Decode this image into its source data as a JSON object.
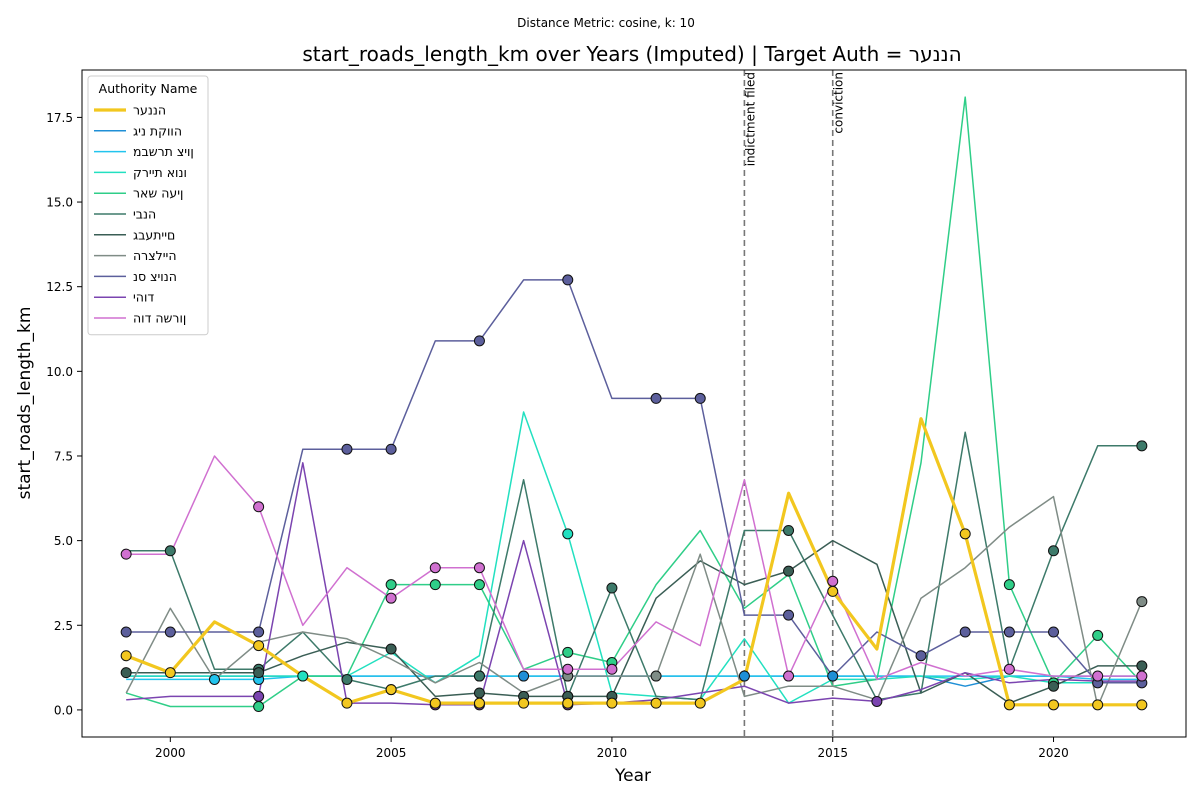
{
  "chart_data": {
    "type": "line",
    "suptitle": "Distance Metric: cosine, k: 10",
    "title": "start_roads_length_km over Years (Imputed) | Target Auth = הננער",
    "xlabel": "Year",
    "ylabel": "start_roads_length_km",
    "xlim": [
      1998,
      2023
    ],
    "ylim": [
      -0.8,
      18.9
    ],
    "xticks": [
      2000,
      2005,
      2010,
      2015,
      2020
    ],
    "yticks": [
      0.0,
      2.5,
      5.0,
      7.5,
      10.0,
      12.5,
      15.0,
      17.5
    ],
    "xtick_labels": [
      "2000",
      "2005",
      "2010",
      "2015",
      "2020"
    ],
    "ytick_labels": [
      "0.0",
      "2.5",
      "5.0",
      "7.5",
      "10.0",
      "12.5",
      "15.0",
      "17.5"
    ],
    "grid": false,
    "legend": {
      "title": "Authority Name",
      "placement": "top-left"
    },
    "annotations": [
      {
        "x": 2013,
        "label": "indictment filed"
      },
      {
        "x": 2015,
        "label": "conviction"
      }
    ],
    "x": [
      1999,
      2000,
      2001,
      2002,
      2003,
      2004,
      2005,
      2006,
      2007,
      2008,
      2009,
      2010,
      2011,
      2012,
      2013,
      2014,
      2015,
      2016,
      2017,
      2018,
      2019,
      2020,
      2021,
      2022
    ],
    "series": [
      {
        "name": "הננער",
        "color": "#f2c71f",
        "width": 3.2,
        "target": true,
        "values": [
          1.6,
          1.1,
          2.6,
          1.9,
          1.0,
          0.2,
          0.6,
          0.2,
          0.2,
          0.2,
          0.2,
          0.2,
          0.2,
          0.2,
          0.9,
          6.4,
          3.5,
          1.8,
          8.6,
          5.2,
          0.15,
          0.15,
          0.15,
          0.15
        ],
        "markers": [
          0,
          1,
          3,
          5,
          6,
          7,
          8,
          9,
          10,
          11,
          12,
          13,
          16,
          19,
          20,
          21,
          22,
          23
        ]
      },
      {
        "name": "הווקת ניג",
        "color": "#1f8fd6",
        "width": 1.5,
        "values": [
          1.0,
          1.0,
          1.0,
          1.0,
          1.0,
          1.0,
          1.0,
          1.0,
          1.0,
          1.0,
          1.0,
          1.0,
          1.0,
          1.0,
          1.0,
          1.0,
          1.0,
          1.0,
          1.0,
          0.7,
          1.0,
          1.0,
          1.0,
          1.0
        ],
        "markers": [
          8,
          9,
          14,
          16
        ]
      },
      {
        "name": "ןויצ תרשבמ",
        "color": "#22c4ee",
        "width": 1.5,
        "values": [
          0.9,
          0.9,
          0.9,
          0.9,
          1.0,
          1.0,
          1.0,
          1.0,
          1.0,
          1.0,
          1.0,
          1.0,
          1.0,
          1.0,
          1.0,
          1.0,
          1.0,
          1.0,
          1.0,
          1.0,
          1.0,
          1.0,
          0.9,
          0.9
        ],
        "markers": [
          2,
          3
        ]
      },
      {
        "name": "ונוא תיירק",
        "color": "#22e0c0",
        "width": 1.5,
        "values": [
          1.0,
          1.0,
          1.0,
          1.0,
          1.0,
          1.0,
          1.7,
          0.8,
          1.6,
          8.8,
          5.2,
          0.5,
          0.4,
          0.3,
          2.1,
          0.2,
          0.9,
          0.9,
          1.0,
          0.9,
          1.0,
          0.8,
          0.8,
          0.8
        ],
        "markers": [
          4,
          10
        ]
      },
      {
        "name": "ןיעה שאר",
        "color": "#2fce88",
        "width": 1.5,
        "values": [
          0.5,
          0.1,
          0.1,
          0.1,
          1.0,
          1.0,
          3.7,
          3.7,
          3.7,
          1.2,
          1.7,
          1.4,
          3.7,
          5.3,
          3.0,
          4.0,
          0.7,
          0.9,
          7.3,
          18.1,
          3.7,
          0.8,
          2.2,
          0.8
        ],
        "markers": [
          3,
          6,
          7,
          8,
          10,
          11,
          20,
          21,
          22
        ]
      },
      {
        "name": "הנבי",
        "color": "#3d7a6a",
        "width": 1.5,
        "values": [
          4.7,
          4.7,
          1.2,
          1.2,
          2.3,
          0.9,
          0.6,
          1.0,
          1.0,
          6.8,
          0.4,
          3.6,
          0.4,
          0.3,
          5.3,
          5.3,
          2.8,
          0.3,
          0.5,
          8.2,
          1.2,
          4.7,
          7.8,
          7.8
        ],
        "markers": [
          1,
          3,
          5,
          6,
          8,
          10,
          11,
          15,
          21,
          23
        ]
      },
      {
        "name": "םייתעבג",
        "color": "#3a5e55",
        "width": 1.5,
        "values": [
          1.1,
          1.1,
          1.1,
          1.1,
          1.6,
          2.0,
          1.8,
          0.4,
          0.5,
          0.4,
          0.4,
          0.4,
          3.3,
          4.4,
          3.7,
          4.1,
          5.0,
          4.3,
          0.5,
          1.1,
          0.2,
          0.7,
          1.3,
          1.3
        ],
        "markers": [
          0,
          3,
          6,
          8,
          9,
          10,
          11,
          15,
          21,
          23
        ]
      },
      {
        "name": "היילצרה",
        "color": "#7f8c86",
        "width": 1.5,
        "values": [
          0.5,
          3.0,
          0.9,
          2.0,
          2.3,
          2.1,
          1.5,
          0.8,
          1.4,
          0.5,
          1.0,
          1.0,
          1.0,
          4.6,
          0.4,
          0.7,
          0.7,
          0.3,
          3.3,
          4.2,
          5.4,
          6.3,
          0.1,
          3.2
        ],
        "markers": [
          10,
          12,
          23
        ]
      },
      {
        "name": "הנויצ סנ",
        "color": "#5c5f9c",
        "width": 1.5,
        "values": [
          2.3,
          2.3,
          2.3,
          2.3,
          7.7,
          7.7,
          7.7,
          10.9,
          10.9,
          12.7,
          12.7,
          9.2,
          9.2,
          9.2,
          2.8,
          2.8,
          1.0,
          2.3,
          1.6,
          2.3,
          2.3,
          2.3,
          0.8,
          0.8
        ],
        "markers": [
          0,
          1,
          3,
          5,
          6,
          8,
          10,
          12,
          13,
          15,
          18,
          19,
          20,
          21,
          22,
          23
        ]
      },
      {
        "name": "דוהי",
        "color": "#7b44b0",
        "width": 1.5,
        "values": [
          0.3,
          0.4,
          0.4,
          0.4,
          7.3,
          0.2,
          0.2,
          0.15,
          0.15,
          5.0,
          0.15,
          0.2,
          0.3,
          0.5,
          0.7,
          0.2,
          0.35,
          0.25,
          0.6,
          1.1,
          0.8,
          0.9,
          0.85,
          0.85
        ],
        "markers": [
          3,
          7,
          8,
          10,
          17
        ]
      },
      {
        "name": "ןורשה דוה",
        "color": "#d070d0",
        "width": 1.5,
        "values": [
          4.6,
          4.6,
          7.5,
          6.0,
          2.5,
          4.2,
          3.3,
          4.2,
          4.2,
          1.2,
          1.2,
          1.2,
          2.6,
          1.9,
          6.8,
          1.0,
          3.8,
          0.9,
          1.4,
          1.0,
          1.2,
          1.0,
          1.0,
          1.0
        ],
        "markers": [
          0,
          3,
          6,
          7,
          8,
          10,
          11,
          15,
          16,
          20,
          22,
          23
        ]
      }
    ]
  }
}
